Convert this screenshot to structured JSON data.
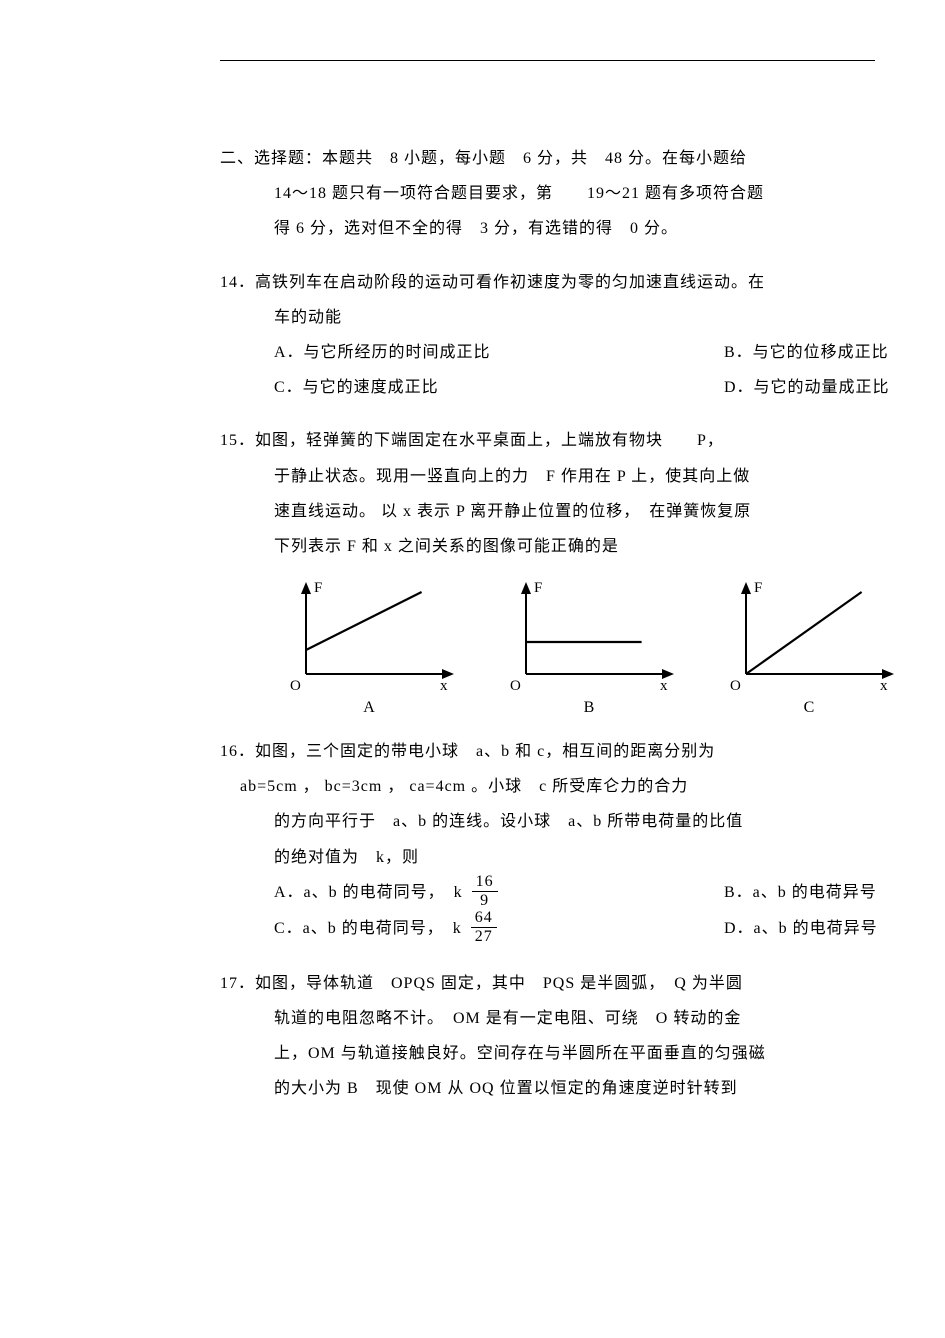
{
  "section": {
    "heading_line1": "二、选择题：本题共　8 小题，每小题　6 分，共　48 分。在每小题给",
    "heading_line2": "14～18 题只有一项符合题目要求，第　　19～21 题有多项符合题",
    "heading_line3": "得 6 分，选对但不全的得　3 分，有选错的得　0 分。"
  },
  "q14": {
    "stem_line1": "14．高铁列车在启动阶段的运动可看作初速度为零的匀加速直线运动。在",
    "stem_line2": "车的动能",
    "optA": "A．与它所经历的时间成正比",
    "optB": "B．与它的位移成正比",
    "optC": "C．与它的速度成正比",
    "optD": "D．与它的动量成正比"
  },
  "q15": {
    "stem_line1": "15．如图，轻弹簧的下端固定在水平桌面上，上端放有物块　　P，",
    "stem_line2": "于静止状态。现用一竖直向上的力　F 作用在 P 上，使其向上做",
    "stem_line3": "速直线运动。 以 x 表示 P 离开静止位置的位移，　在弹簧恢复原",
    "stem_line4": "下列表示 F 和 x 之间关系的图像可能正确的是",
    "graphs": {
      "A": {
        "label": "A",
        "type": "line",
        "start_y": 0.3,
        "slope": 0.65,
        "axis_color": "#000000",
        "line_color": "#000000",
        "y_label": "F",
        "x_label": "x",
        "o_label": "O"
      },
      "B": {
        "label": "B",
        "type": "flat",
        "level_y": 0.4,
        "axis_color": "#000000",
        "line_color": "#000000",
        "y_label": "F",
        "x_label": "x",
        "o_label": "O"
      },
      "C": {
        "label": "C",
        "type": "line",
        "start_y": 0.0,
        "slope": 0.75,
        "axis_color": "#000000",
        "line_color": "#000000",
        "y_label": "F",
        "x_label": "x",
        "o_label": "O"
      }
    }
  },
  "q16": {
    "stem_line1": "16．如图，三个固定的带电小球　a、b 和 c，相互间的距离分别为",
    "stem_line2": "ab=5cm ， bc=3cm ， ca=4cm 。小球　c 所受库仑力的合力",
    "stem_line3": "的方向平行于　a、b 的连线。设小球　a、b 所带电荷量的比值",
    "stem_line4": "的绝对值为　k，则",
    "optA_prefix": "A．a、b 的电荷同号，　k",
    "optA_frac": {
      "num": "16",
      "den": "9"
    },
    "optB": "B．a、b 的电荷异号",
    "optC_prefix": "C．a、b 的电荷同号，　k",
    "optC_frac": {
      "num": "64",
      "den": "27"
    },
    "optD": "D．a、b 的电荷异号"
  },
  "q17": {
    "stem_line1": "17．如图，导体轨道　OPQS 固定，其中　PQS 是半圆弧，　Q 为半圆",
    "stem_line2": "轨道的电阻忽略不计。　OM 是有一定电阻、可绕　O 转动的金",
    "stem_line3": "上，OM 与轨道接触良好。空间存在与半圆所在平面垂直的匀强磁",
    "stem_line4": "的大小为 B　现使 OM 从 OQ 位置以恒定的角速度逆时针转到"
  }
}
